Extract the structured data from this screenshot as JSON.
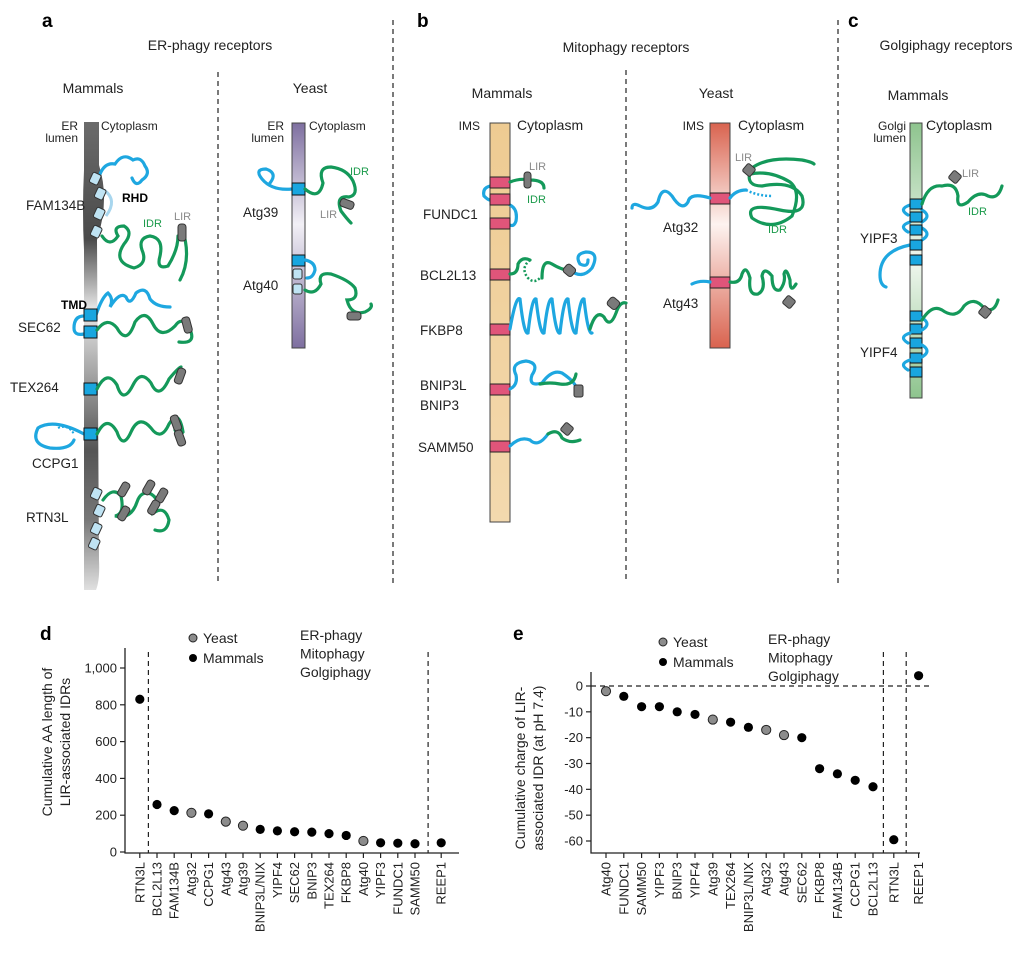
{
  "panels": {
    "a": {
      "letter": "a",
      "title": "ER-phagy receptors",
      "mammals": "Mammals",
      "yeast": "Yeast",
      "er": "ER",
      "lumen": "lumen",
      "cytoplasm": "Cytoplasm",
      "rhd": "RHD",
      "tmd": "TMD",
      "idr": "IDR",
      "lir": "LIR",
      "mammal_proteins": [
        "FAM134B",
        "SEC62",
        "TEX264",
        "CCPG1",
        "RTN3L"
      ],
      "yeast_proteins": [
        "Atg39",
        "Atg40"
      ]
    },
    "b": {
      "letter": "b",
      "title": "Mitophagy receptors",
      "mammals": "Mammals",
      "yeast": "Yeast",
      "ims": "IMS",
      "cytoplasm": "Cytoplasm",
      "idr": "IDR",
      "lir": "LIR",
      "mammal_proteins": [
        "FUNDC1",
        "BCL2L13",
        "FKBP8",
        "BNIP3L",
        "BNIP3",
        "SAMM50"
      ],
      "yeast_proteins": [
        "Atg32",
        "Atg43"
      ]
    },
    "c": {
      "letter": "c",
      "title": "Golgiphagy receptors",
      "mammals": "Mammals",
      "golgi": "Golgi",
      "lumen": "lumen",
      "cytoplasm": "Cytoplasm",
      "idr": "IDR",
      "lir": "LIR",
      "mammal_proteins": [
        "YIPF3",
        "YIPF4"
      ]
    }
  },
  "colors": {
    "ER-phagy": "#29abe2",
    "Mitophagy": "#ee2a45",
    "Golgiphagy": "#7a5aa6",
    "none": "#111111",
    "Yeast": "#8c8c8c",
    "Mammals": "#000000"
  },
  "chart_data": [
    {
      "type": "scatter",
      "panel": "d",
      "ylabel": [
        "Cumulative AA length of",
        "LIR-associated IDRs"
      ],
      "ylim": [
        0,
        1000
      ],
      "yticks": [
        "0",
        "200",
        "400",
        "600",
        "800",
        "1,000"
      ],
      "ytick_values": [
        0,
        200,
        400,
        600,
        800,
        1000
      ],
      "legend": {
        "organisms": [
          "Yeast",
          "Mammals"
        ],
        "pathways": [
          "ER-phagy",
          "Mitophagy",
          "Golgiphagy"
        ],
        "placement": "top"
      },
      "dividers_after_index": [
        0,
        16
      ],
      "categories": [
        "RTN3L",
        "BCL2L13",
        "FAM134B",
        "Atg32",
        "CCPG1",
        "Atg43",
        "Atg39",
        "BNIP3L/NIX",
        "YIPF4",
        "SEC62",
        "BNIP3",
        "TEX264",
        "FKBP8",
        "Atg40",
        "YIPF3",
        "FUNDC1",
        "SAMM50",
        "REEP1"
      ],
      "pathway": [
        "ER-phagy",
        "Mitophagy",
        "ER-phagy",
        "Mitophagy",
        "ER-phagy",
        "Mitophagy",
        "ER-phagy",
        "Mitophagy",
        "Golgiphagy",
        "ER-phagy",
        "Mitophagy",
        "ER-phagy",
        "Mitophagy",
        "ER-phagy",
        "Golgiphagy",
        "Mitophagy",
        "Mitophagy",
        "none"
      ],
      "organism": [
        "Mammals",
        "Mammals",
        "Mammals",
        "Yeast",
        "Mammals",
        "Yeast",
        "Yeast",
        "Mammals",
        "Mammals",
        "Mammals",
        "Mammals",
        "Mammals",
        "Mammals",
        "Yeast",
        "Mammals",
        "Mammals",
        "Mammals",
        "Mammals"
      ],
      "values": [
        830,
        258,
        225,
        213,
        207,
        165,
        143,
        123,
        115,
        110,
        108,
        100,
        90,
        60,
        50,
        48,
        45,
        50
      ]
    },
    {
      "type": "scatter",
      "panel": "e",
      "ylabel": [
        "Cumulative charge of LIR-",
        "associated IDR (at pH 7.4)"
      ],
      "ylim": [
        -62,
        5
      ],
      "yticks": [
        "0",
        "-10",
        "-20",
        "-30",
        "-40",
        "-50",
        "-60"
      ],
      "ytick_values": [
        0,
        -10,
        -20,
        -30,
        -40,
        -50,
        -60
      ],
      "zero_line": true,
      "legend": {
        "organisms": [
          "Yeast",
          "Mammals"
        ],
        "pathways": [
          "ER-phagy",
          "Mitophagy",
          "Golgiphagy"
        ],
        "placement": "top"
      },
      "dividers_after_index": [
        15,
        16
      ],
      "categories": [
        "Atg40",
        "FUNDC1",
        "SAMM50",
        "YIPF3",
        "BNIP3",
        "YIPF4",
        "Atg39",
        "TEX264",
        "BNIP3L/NIX",
        "Atg32",
        "Atg43",
        "SEC62",
        "FKBP8",
        "FAM134B",
        "CCPG1",
        "BCL2L13",
        "RTN3L",
        "REEP1"
      ],
      "pathway": [
        "ER-phagy",
        "Mitophagy",
        "Mitophagy",
        "Golgiphagy",
        "Mitophagy",
        "Golgiphagy",
        "ER-phagy",
        "ER-phagy",
        "Mitophagy",
        "Mitophagy",
        "Mitophagy",
        "ER-phagy",
        "Mitophagy",
        "ER-phagy",
        "ER-phagy",
        "Mitophagy",
        "ER-phagy",
        "none"
      ],
      "organism": [
        "Yeast",
        "Mammals",
        "Mammals",
        "Mammals",
        "Mammals",
        "Mammals",
        "Yeast",
        "Mammals",
        "Mammals",
        "Yeast",
        "Yeast",
        "Mammals",
        "Mammals",
        "Mammals",
        "Mammals",
        "Mammals",
        "Mammals",
        "Mammals"
      ],
      "values": [
        -2,
        -4,
        -8,
        -8,
        -10,
        -11,
        -13,
        -14,
        -16,
        -17,
        -19,
        -20,
        -32,
        -34,
        -36.5,
        -39,
        -59.5,
        4
      ]
    }
  ]
}
